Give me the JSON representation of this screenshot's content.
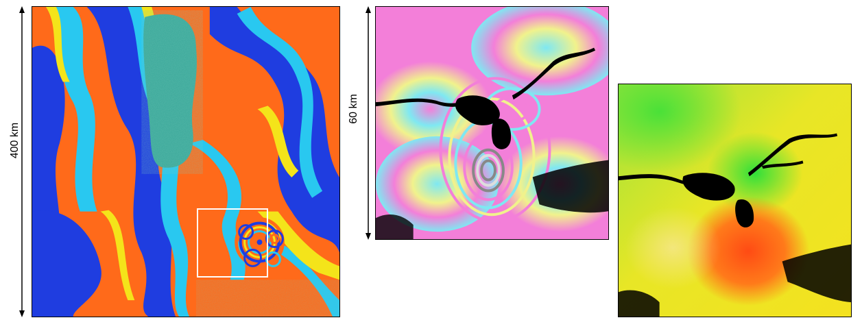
{
  "figure": {
    "left_scale_label": "400 km",
    "mid_scale_label": "60 km"
  },
  "colors": {
    "wrapped_orange": "#ff6a1a",
    "wrapped_blue": "#1f3de0",
    "wrapped_cyan": "#29c8f0",
    "wrapped_yellow": "#f4e41a",
    "pastel_pink": "#f37fd9",
    "pastel_cyan": "#7fe8f2",
    "pastel_yellow": "#f1f28c",
    "unwrapped_green": "#2fe03a",
    "unwrapped_yellow": "#f4e21f",
    "unwrapped_red": "#ff4b14",
    "mask_black": "#000000"
  }
}
